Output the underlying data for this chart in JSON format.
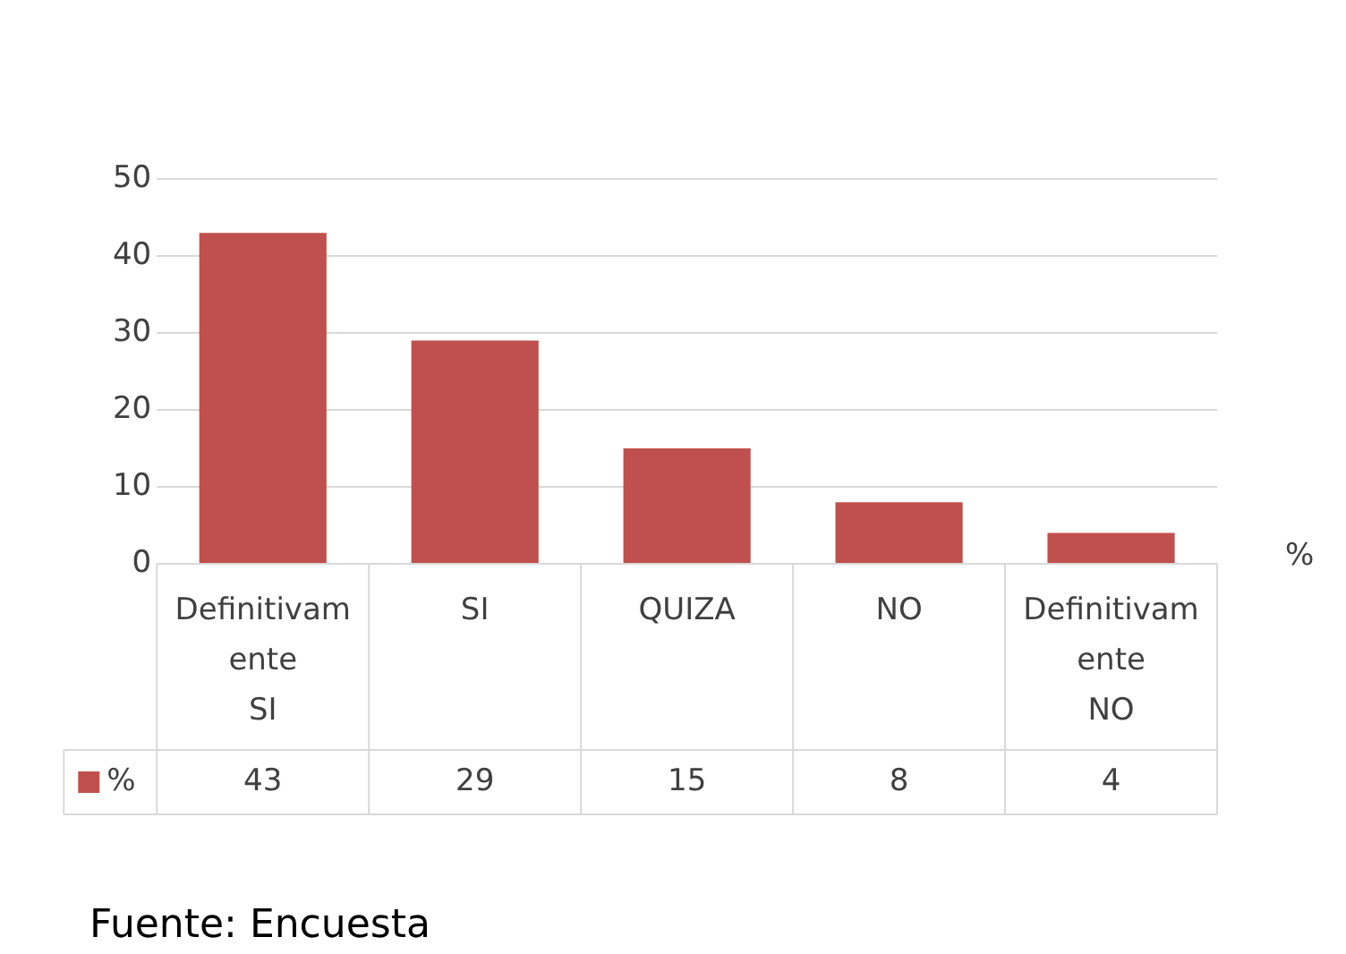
{
  "chart_data": {
    "type": "bar",
    "xlabel": "%",
    "categories": [
      "Definitivamente SI",
      "SI",
      "QUIZA",
      "NO",
      "Definitivamente NO"
    ],
    "series": [
      {
        "name": "%",
        "color": "#c0504d",
        "values": [
          43,
          29,
          15,
          8,
          4
        ]
      }
    ],
    "ylim": [
      0,
      50
    ],
    "yticks": [
      0,
      10,
      20,
      30,
      40,
      50
    ],
    "grid": "y",
    "data_labels": true,
    "annotations": [
      "Fuente: Encuesta"
    ]
  }
}
